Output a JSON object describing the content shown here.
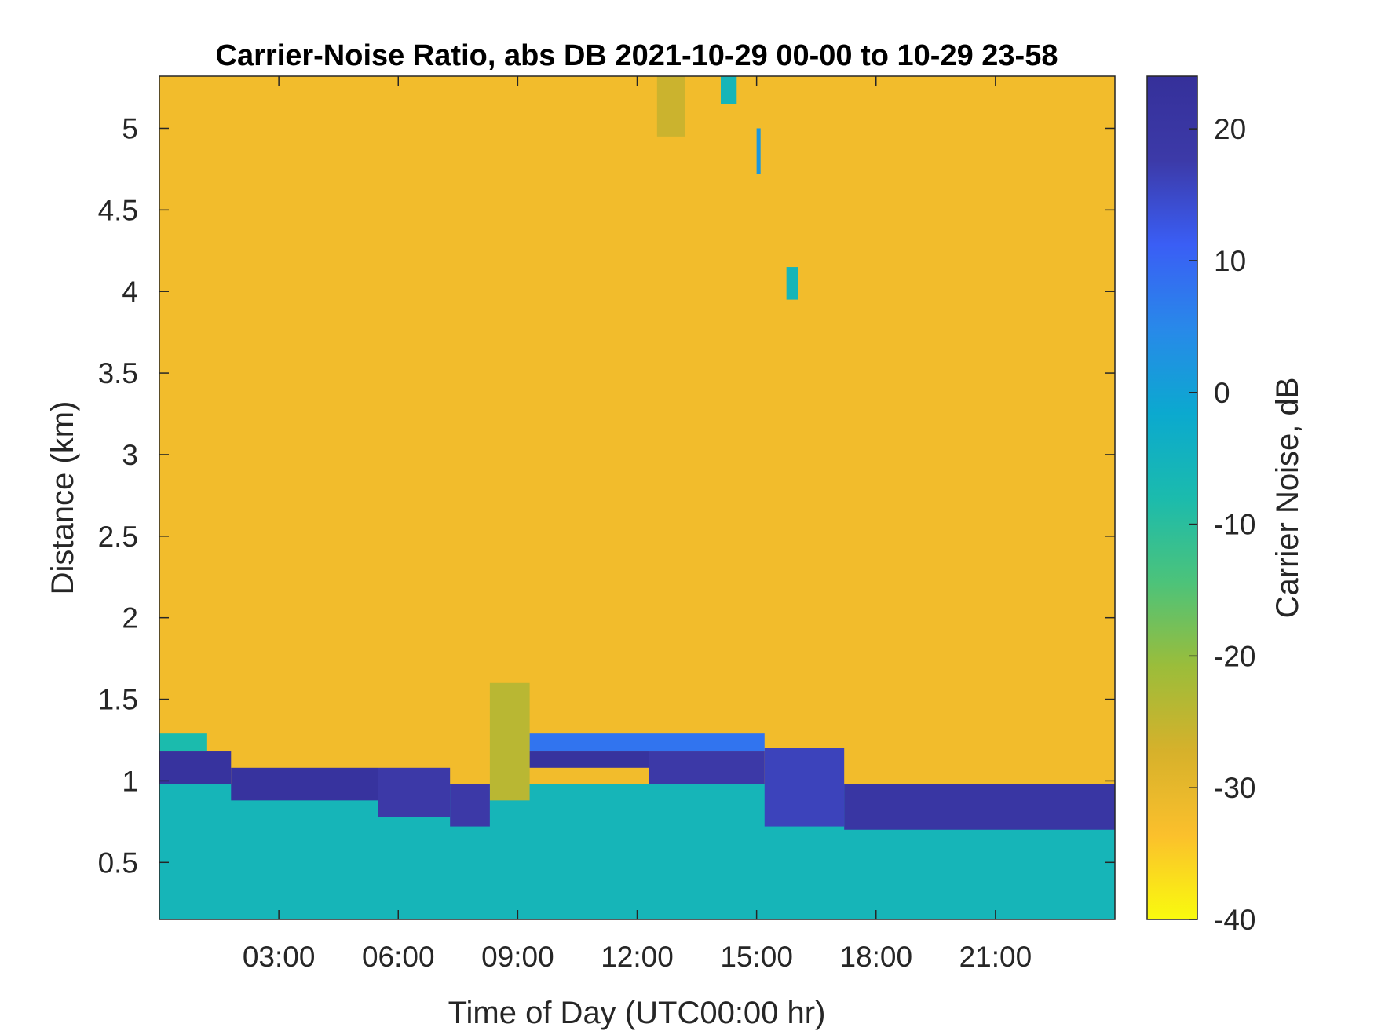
{
  "chart_data": {
    "type": "heatmap",
    "title": "Carrier-Noise Ratio, abs DB 2021-10-29 00-00 to 10-29 23-58",
    "xlabel": "Time of Day (UTC00:00 hr)",
    "ylabel": "Distance (km)",
    "colorbar_label": "Carrier Noise, dB",
    "x_unit": "hours",
    "xlim": [
      0,
      24
    ],
    "ylim": [
      0.15,
      5.32
    ],
    "clim": [
      -40,
      24
    ],
    "x_ticks": [
      3,
      6,
      9,
      12,
      15,
      18,
      21
    ],
    "x_tick_labels": [
      "03:00",
      "06:00",
      "09:00",
      "12:00",
      "15:00",
      "18:00",
      "21:00"
    ],
    "y_ticks": [
      0.5,
      1,
      1.5,
      2,
      2.5,
      3,
      3.5,
      4,
      4.5,
      5
    ],
    "y_tick_labels": [
      "0.5",
      "1",
      "1.5",
      "2",
      "2.5",
      "3",
      "3.5",
      "4",
      "4.5",
      "5"
    ],
    "colorbar_ticks": [
      20,
      10,
      0,
      -10,
      -20,
      -30,
      -40
    ],
    "colorbar_tick_labels": [
      "20",
      "10",
      "0",
      "-10",
      "-20",
      "-30",
      "-40"
    ],
    "colormap": "parula",
    "colormap_stops": [
      "#f9fb0e",
      "#fbc02c",
      "#d6b12b",
      "#9bbd3a",
      "#4cc37a",
      "#1bbbad",
      "#0ba9cf",
      "#2889e9",
      "#3a5ef5",
      "#3c3aa8",
      "#35309a"
    ],
    "background_value_db": -32,
    "layers": [
      {
        "time_hours": [
          0,
          1.2
        ],
        "distance_km": [
          1.18,
          1.29
        ],
        "value_db": -8
      },
      {
        "time_hours": [
          0,
          1.8
        ],
        "distance_km": [
          0.98,
          1.18
        ],
        "value_db": 22
      },
      {
        "time_hours": [
          1.8,
          5.5
        ],
        "distance_km": [
          0.88,
          1.08
        ],
        "value_db": 22
      },
      {
        "time_hours": [
          5.5,
          7.3
        ],
        "distance_km": [
          0.78,
          1.08
        ],
        "value_db": 18
      },
      {
        "time_hours": [
          7.3,
          8.3
        ],
        "distance_km": [
          0.72,
          0.98
        ],
        "value_db": 18
      },
      {
        "time_hours": [
          8.3,
          9.3
        ],
        "distance_km": [
          0.88,
          1.6
        ],
        "value_db": -24
      },
      {
        "time_hours": [
          9.3,
          15.2
        ],
        "distance_km": [
          1.18,
          1.29
        ],
        "value_db": 8
      },
      {
        "time_hours": [
          9.3,
          12.3
        ],
        "distance_km": [
          1.08,
          1.18
        ],
        "value_db": 22
      },
      {
        "time_hours": [
          12.3,
          15.2
        ],
        "distance_km": [
          0.98,
          1.18
        ],
        "value_db": 18
      },
      {
        "time_hours": [
          15.2,
          17.2
        ],
        "distance_km": [
          0.72,
          1.2
        ],
        "value_db": 16
      },
      {
        "time_hours": [
          17.2,
          24
        ],
        "distance_km": [
          0.7,
          0.98
        ],
        "value_db": 20
      },
      {
        "time_hours": [
          0,
          24
        ],
        "distance_km": [
          0.15,
          0.98
        ],
        "value_db": -6
      }
    ],
    "sparse_features": [
      {
        "time_hours": [
          14.1,
          14.5
        ],
        "distance_km": [
          5.15,
          5.32
        ],
        "value_db": -6
      },
      {
        "time_hours": [
          15.0,
          15.1
        ],
        "distance_km": [
          4.72,
          5.0
        ],
        "value_db": 2
      },
      {
        "time_hours": [
          15.75,
          16.05
        ],
        "distance_km": [
          3.95,
          4.15
        ],
        "value_db": -6
      },
      {
        "time_hours": [
          12.5,
          13.2
        ],
        "distance_km": [
          4.95,
          5.32
        ],
        "value_db": -26
      }
    ]
  }
}
